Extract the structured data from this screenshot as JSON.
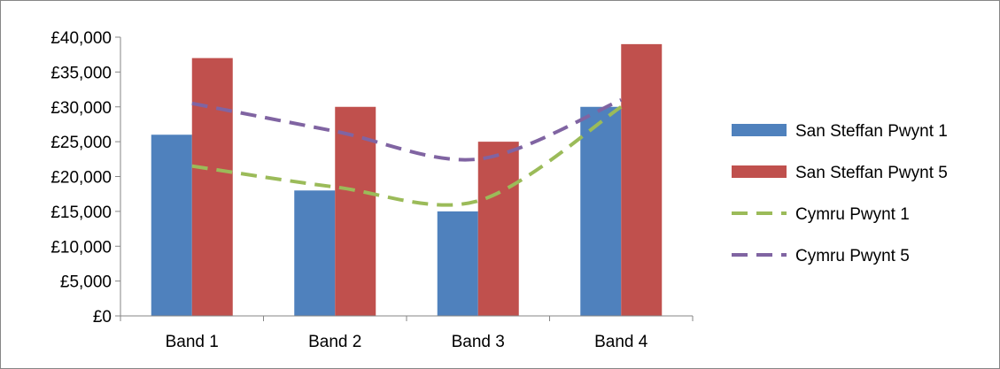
{
  "chart_data": {
    "type": "bar",
    "title": "",
    "xlabel": "",
    "ylabel": "",
    "categories": [
      "Band 1",
      "Band 2",
      "Band 3",
      "Band 4"
    ],
    "ylim": [
      0,
      40000
    ],
    "yticks": [
      0,
      5000,
      10000,
      15000,
      20000,
      25000,
      30000,
      35000,
      40000
    ],
    "ytick_labels": [
      "£0",
      "£5,000",
      "£10,000",
      "£15,000",
      "£20,000",
      "£25,000",
      "£30,000",
      "£35,000",
      "£40,000"
    ],
    "grid": false,
    "legend_position": "right",
    "series": [
      {
        "name": "San Steffan Pwynt 1",
        "kind": "bar",
        "color": "#4F81BD",
        "values": [
          26000,
          18000,
          15000,
          30000
        ]
      },
      {
        "name": "San Steffan Pwynt 5",
        "kind": "bar",
        "color": "#C0504D",
        "values": [
          37000,
          30000,
          25000,
          39000
        ]
      },
      {
        "name": "Cymru Pwynt 1",
        "kind": "line",
        "style": "dashed",
        "color": "#9BBB59",
        "values": [
          21500,
          18500,
          16500,
          30000
        ]
      },
      {
        "name": "Cymru Pwynt 5",
        "kind": "line",
        "style": "dashed",
        "color": "#8064A2",
        "values": [
          30500,
          26500,
          22500,
          31000
        ]
      }
    ]
  }
}
